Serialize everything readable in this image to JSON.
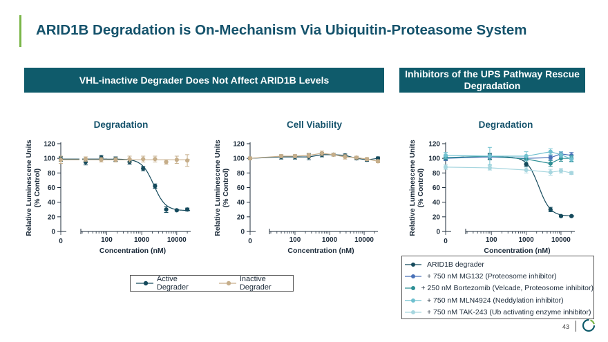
{
  "slide": {
    "title": "ARID1B Degradation is On-Mechanism Via Ubiquitin-Proteasome System",
    "page_number": "43"
  },
  "banners": {
    "left": "VHL-inactive Degrader Does Not Affect ARID1B Levels",
    "right": "Inhibitors of the UPS Pathway Rescue Degradation"
  },
  "colors": {
    "accent_green": "#7ab648",
    "banner_teal": "#0f5b6b",
    "title_blue": "#14526b",
    "active": "#154a5c",
    "inactive": "#c6ae8a",
    "mg132": "#4a72b8",
    "bortezomib": "#2e8f95",
    "mln4924": "#6fc0cf",
    "tak243": "#a7d6df"
  },
  "legend_left": {
    "active": "Active Degrader",
    "inactive": "Inactive Degrader"
  },
  "legend_right": [
    "ARID1B degrader",
    "+ 750 nM MG132 (Proteosome inhibitor)",
    "+ 250 nM Bortezomib (Velcade, Proteosome inhibitor)",
    "+ 750 nM MLN4924 (Neddylation inhibitor)",
    "+ 750 nM TAK-243 (Ub activating enzyme inhibitor)"
  ],
  "chart_data": [
    {
      "type": "scatter",
      "title": "Degradation",
      "xlabel": "Concentration (nM)",
      "ylabel": "Relative Luminescene Units (% Control)",
      "xscale": "log",
      "ylim": [
        0,
        120
      ],
      "yticks": [
        0,
        20,
        40,
        60,
        80,
        100,
        120
      ],
      "xticks": [
        {
          "v": 0,
          "label": "0"
        },
        {
          "v": 100,
          "label": "100"
        },
        {
          "v": 1000,
          "label": "1000"
        },
        {
          "v": 10000,
          "label": "10000"
        }
      ],
      "series": [
        {
          "name": "Active Degrader",
          "color_key": "active",
          "fit": "sigmoid",
          "zero": {
            "y": 99,
            "err": 3
          },
          "points": [
            [
              25,
              95,
              4
            ],
            [
              70,
              101,
              3
            ],
            [
              180,
              99,
              3
            ],
            [
              450,
              95,
              3
            ],
            [
              1100,
              86,
              3
            ],
            [
              2400,
              62,
              3
            ],
            [
              5000,
              30,
              4
            ],
            [
              10000,
              29,
              1
            ],
            [
              20000,
              30,
              2
            ]
          ],
          "curve": {
            "top": 99,
            "bottom": 28.5,
            "ec50": 2200,
            "hill": 2.6
          }
        },
        {
          "name": "Inactive Degrader",
          "color_key": "inactive",
          "fit": "flat",
          "zero": {
            "y": 98,
            "err": 5
          },
          "points": [
            [
              25,
              99,
              3
            ],
            [
              70,
              98,
              3
            ],
            [
              180,
              98,
              3
            ],
            [
              450,
              99,
              4
            ],
            [
              1100,
              99,
              4
            ],
            [
              2400,
              99,
              4
            ],
            [
              5000,
              95,
              3
            ],
            [
              10000,
              98,
              5
            ],
            [
              20000,
              97,
              8
            ]
          ],
          "curve": {
            "top": 98,
            "bottom": 98,
            "ec50": 1000,
            "hill": 1
          }
        }
      ]
    },
    {
      "type": "scatter",
      "title": "Cell Viability",
      "xlabel": "Concentration (nM)",
      "ylabel": "Relative Luminescene Units (% Control)",
      "xscale": "log",
      "ylim": [
        0,
        120
      ],
      "yticks": [
        0,
        20,
        40,
        60,
        80,
        100,
        120
      ],
      "xticks": [
        {
          "v": 0,
          "label": "0"
        },
        {
          "v": 100,
          "label": "100"
        },
        {
          "v": 1000,
          "label": "1000"
        },
        {
          "v": 10000,
          "label": "10000"
        }
      ],
      "series": [
        {
          "name": "Active Degrader",
          "color_key": "active",
          "fit": "smooth",
          "zero": {
            "y": 100,
            "err": 2
          },
          "points": [
            [
              40,
              102,
              3
            ],
            [
              100,
              102,
              3
            ],
            [
              250,
              102,
              4
            ],
            [
              600,
              105,
              3
            ],
            [
              1300,
              105,
              2
            ],
            [
              2800,
              104,
              2
            ],
            [
              6000,
              100,
              2
            ],
            [
              12000,
              98,
              2
            ],
            [
              25000,
              100,
              2
            ]
          ]
        },
        {
          "name": "Inactive Degrader",
          "color_key": "inactive",
          "fit": "smooth",
          "zero": {
            "y": 100,
            "err": 2
          },
          "points": [
            [
              40,
              103,
              2
            ],
            [
              100,
              103,
              2
            ],
            [
              250,
              104,
              3
            ],
            [
              600,
              107,
              3
            ],
            [
              1300,
              105,
              2
            ],
            [
              2800,
              102,
              3
            ],
            [
              6000,
              101,
              2
            ],
            [
              12000,
              99,
              2
            ],
            [
              25000,
              96,
              2
            ]
          ]
        }
      ]
    },
    {
      "type": "scatter",
      "title": "Degradation",
      "xlabel": "Concentration (nM)",
      "ylabel": "Relative Luminescene Units (% Control)",
      "xscale": "log",
      "ylim": [
        0,
        120
      ],
      "yticks": [
        0,
        20,
        40,
        60,
        80,
        100,
        120
      ],
      "xticks": [
        {
          "v": 0,
          "label": "0"
        },
        {
          "v": 100,
          "label": "100"
        },
        {
          "v": 1000,
          "label": "1000"
        },
        {
          "v": 10000,
          "label": "10000"
        }
      ],
      "series": [
        {
          "name": "ARID1B degrader",
          "color_key": "active",
          "fit": "sigmoid",
          "zero": {
            "y": 100,
            "err": 3
          },
          "points": [
            [
              90,
              102,
              4
            ],
            [
              1000,
              92,
              3
            ],
            [
              5000,
              30,
              3
            ],
            [
              10000,
              21,
              1
            ],
            [
              20000,
              21,
              1
            ]
          ],
          "curve": {
            "top": 102,
            "bottom": 21,
            "ec50": 2300,
            "hill": 2.6
          }
        },
        {
          "name": "+ 750 nM MG132 (Proteosome inhibitor)",
          "color_key": "mg132",
          "fit": "smooth",
          "zero": {
            "y": 100,
            "err": 3
          },
          "points": [
            [
              90,
              102,
              3
            ],
            [
              1000,
              100,
              3
            ],
            [
              5000,
              101,
              3
            ],
            [
              10000,
              106,
              3
            ],
            [
              20000,
              104,
              4
            ]
          ]
        },
        {
          "name": "+ 250 nM Bortezomib (Velcade, Proteosome inhibitor)",
          "color_key": "bortezomib",
          "fit": "smooth",
          "zero": {
            "y": 101,
            "err": 3
          },
          "points": [
            [
              90,
              103,
              4
            ],
            [
              1000,
              99,
              4
            ],
            [
              5000,
              93,
              4
            ],
            [
              10000,
              100,
              4
            ],
            [
              20000,
              100,
              4
            ]
          ]
        },
        {
          "name": "+ 750 nM MLN4924 (Neddylation inhibitor)",
          "color_key": "mln4924",
          "fit": "smooth",
          "zero": {
            "y": 104,
            "err": 4
          },
          "points": [
            [
              90,
              103,
              12
            ],
            [
              1000,
              103,
              6
            ],
            [
              5000,
              109,
              4
            ],
            [
              10000,
              105,
              4
            ],
            [
              20000,
              99,
              4
            ]
          ]
        },
        {
          "name": "+ 750 nM TAK-243 (Ub activating enzyme inhibitor)",
          "color_key": "tak243",
          "fit": "smooth",
          "zero": {
            "y": 88,
            "err": 3
          },
          "points": [
            [
              90,
              87,
              3
            ],
            [
              1000,
              84,
              4
            ],
            [
              5000,
              81,
              4
            ],
            [
              10000,
              83,
              3
            ],
            [
              20000,
              80,
              2
            ]
          ]
        }
      ]
    }
  ]
}
